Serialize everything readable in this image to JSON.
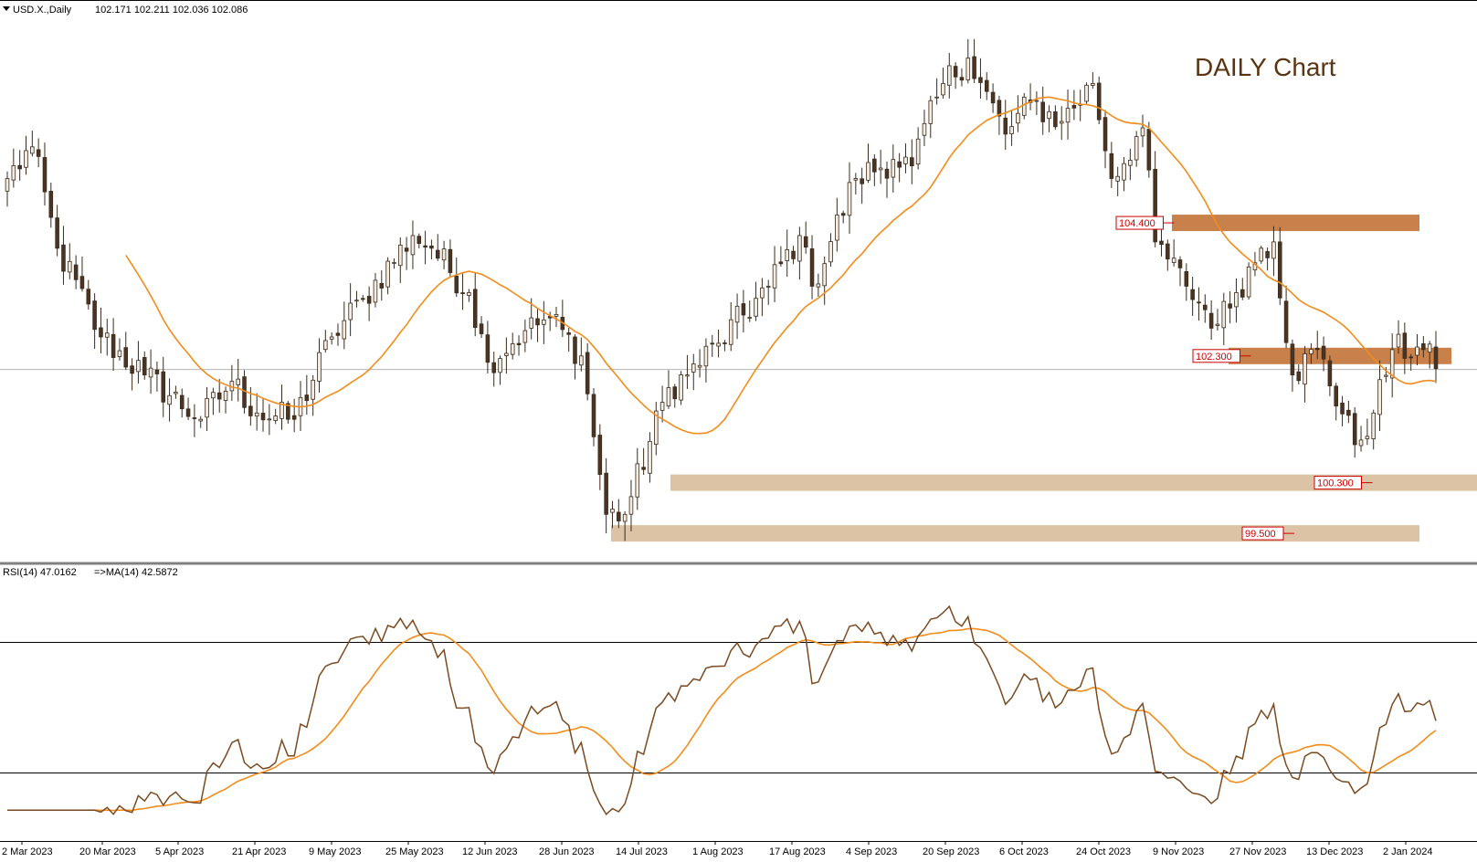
{
  "header": {
    "symbol": "USD.X.,Daily",
    "ohlc": "102.171 102.211 102.036 102.086",
    "annotation": "DAILY Chart"
  },
  "indicator": {
    "label": "RSI(14) 47.0162",
    "ma_label": "=>MA(14) 42.5872",
    "upper_level": 70,
    "lower_level": 30
  },
  "colors": {
    "bull_body": "#f2ece2",
    "bear_body": "#4a3524",
    "wick": "#3b2a1a",
    "ma_line": "#f28c1a",
    "rsi_line": "#7a4a20",
    "resistance_zone": "#c8814b",
    "support_zone": "#dcc3a6",
    "level_label": "#cc0000",
    "current_price_line": "#b4b4b4"
  },
  "chart_data": [
    {
      "type": "candlestick",
      "title": "DAILY Chart",
      "x_tick_labels": [
        "2 Mar 2023",
        "20 Mar 2023",
        "5 Apr 2023",
        "21 Apr 2023",
        "9 May 2023",
        "25 May 2023",
        "12 Jun 2023",
        "28 Jun 2023",
        "14 Jul 2023",
        "1 Aug 2023",
        "17 Aug 2023",
        "4 Sep 2023",
        "20 Sep 2023",
        "6 Oct 2023",
        "24 Oct 2023",
        "9 Nov 2023",
        "27 Nov 2023",
        "13 Dec 2023",
        "2 Jan 2024"
      ],
      "ylim": [
        99.3,
        107.6
      ],
      "moving_average": "orange",
      "levels": [
        {
          "label": "104.400",
          "price": 104.4,
          "zone": "resistance"
        },
        {
          "label": "102.300",
          "price": 102.3,
          "zone": "resistance"
        },
        {
          "label": "100.300",
          "price": 100.3,
          "zone": "support"
        },
        {
          "label": "99.500",
          "price": 99.5,
          "zone": "support"
        }
      ],
      "current_price": 102.086,
      "anchors": [
        {
          "date": "2023-03-01",
          "close": 105.1
        },
        {
          "date": "2023-03-07",
          "close": 105.6
        },
        {
          "date": "2023-03-13",
          "close": 104.0
        },
        {
          "date": "2023-03-22",
          "close": 102.6
        },
        {
          "date": "2023-03-31",
          "close": 102.0
        },
        {
          "date": "2023-04-13",
          "close": 101.3
        },
        {
          "date": "2023-04-20",
          "close": 101.9
        },
        {
          "date": "2023-04-26",
          "close": 101.4
        },
        {
          "date": "2023-05-04",
          "close": 101.3
        },
        {
          "date": "2023-05-12",
          "close": 102.6
        },
        {
          "date": "2023-05-19",
          "close": 103.2
        },
        {
          "date": "2023-05-31",
          "close": 104.2
        },
        {
          "date": "2023-06-05",
          "close": 104.0
        },
        {
          "date": "2023-06-13",
          "close": 103.3
        },
        {
          "date": "2023-06-16",
          "close": 102.2
        },
        {
          "date": "2023-06-26",
          "close": 102.7
        },
        {
          "date": "2023-06-30",
          "close": 102.9
        },
        {
          "date": "2023-07-07",
          "close": 102.3
        },
        {
          "date": "2023-07-13",
          "close": 99.8
        },
        {
          "date": "2023-07-18",
          "close": 99.8
        },
        {
          "date": "2023-07-27",
          "close": 101.8
        },
        {
          "date": "2023-08-01",
          "close": 102.0
        },
        {
          "date": "2023-08-08",
          "close": 102.5
        },
        {
          "date": "2023-08-18",
          "close": 103.4
        },
        {
          "date": "2023-08-25",
          "close": 104.2
        },
        {
          "date": "2023-08-29",
          "close": 103.4
        },
        {
          "date": "2023-09-07",
          "close": 105.1
        },
        {
          "date": "2023-09-15",
          "close": 105.4
        },
        {
          "date": "2023-09-20",
          "close": 105.3
        },
        {
          "date": "2023-09-27",
          "close": 106.6
        },
        {
          "date": "2023-10-03",
          "close": 107.0
        },
        {
          "date": "2023-10-11",
          "close": 105.8
        },
        {
          "date": "2023-10-17",
          "close": 106.3
        },
        {
          "date": "2023-10-24",
          "close": 106.0
        },
        {
          "date": "2023-10-31",
          "close": 106.6
        },
        {
          "date": "2023-11-03",
          "close": 105.1
        },
        {
          "date": "2023-11-10",
          "close": 105.9
        },
        {
          "date": "2023-11-14",
          "close": 104.1
        },
        {
          "date": "2023-11-21",
          "close": 103.4
        },
        {
          "date": "2023-11-28",
          "close": 102.8
        },
        {
          "date": "2023-12-01",
          "close": 103.3
        },
        {
          "date": "2023-12-07",
          "close": 104.0
        },
        {
          "date": "2023-12-11",
          "close": 104.1
        },
        {
          "date": "2023-12-14",
          "close": 102.0
        },
        {
          "date": "2023-12-20",
          "close": 102.4
        },
        {
          "date": "2023-12-28",
          "close": 100.9
        },
        {
          "date": "2024-01-02",
          "close": 101.4
        },
        {
          "date": "2024-01-05",
          "close": 102.4
        },
        {
          "date": "2024-01-12",
          "close": 102.4
        },
        {
          "date": "2024-01-16",
          "close": 102.1
        }
      ]
    },
    {
      "type": "line",
      "title": "RSI(14)",
      "ylim": [
        10,
        90
      ],
      "reference_levels": [
        70,
        30
      ],
      "series": [
        {
          "name": "RSI(14)",
          "last_value": 47.0162
        },
        {
          "name": "MA(14)",
          "last_value": 42.5872
        }
      ]
    }
  ]
}
